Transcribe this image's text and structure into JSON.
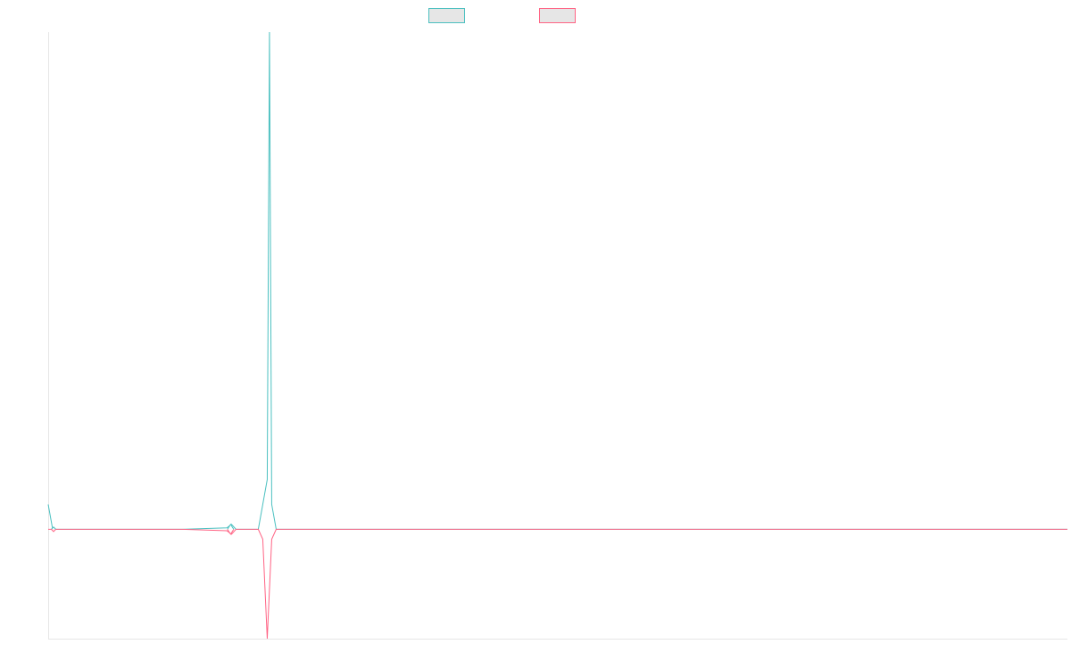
{
  "chart_data": {
    "type": "line",
    "title": "",
    "xlabel": "",
    "ylabel": "",
    "legend_position": "top-center",
    "grid": false,
    "x_range": [
      0,
      228
    ],
    "y_range": [
      -2.2,
      10.0
    ],
    "series": [
      {
        "color": "#4bc0c0",
        "points": [
          [
            0,
            0.5
          ],
          [
            1,
            0.0
          ],
          [
            2,
            0.0
          ],
          [
            30,
            0.0
          ],
          [
            40,
            0.03
          ],
          [
            41,
            0.1
          ],
          [
            42,
            0.0
          ],
          [
            47,
            0.0
          ],
          [
            48,
            0.5
          ],
          [
            49,
            1.0
          ],
          [
            49.5,
            10.0
          ],
          [
            50,
            0.5
          ],
          [
            51,
            0.0
          ],
          [
            228,
            0.0
          ]
        ]
      },
      {
        "color": "#ff6384",
        "points": [
          [
            0,
            0.0
          ],
          [
            1,
            0.0
          ],
          [
            2,
            0.0
          ],
          [
            30,
            0.0
          ],
          [
            40,
            -0.03
          ],
          [
            41,
            -0.1
          ],
          [
            42,
            0.0
          ],
          [
            47,
            0.0
          ],
          [
            48,
            -0.2
          ],
          [
            49,
            -2.2
          ],
          [
            50,
            -0.2
          ],
          [
            51,
            0.0
          ],
          [
            228,
            0.0
          ]
        ]
      }
    ],
    "markers": [
      {
        "x": 1.2,
        "y": 0.0,
        "size": "small"
      },
      {
        "x": 40.8,
        "y": 0.0,
        "size": "large"
      }
    ]
  }
}
